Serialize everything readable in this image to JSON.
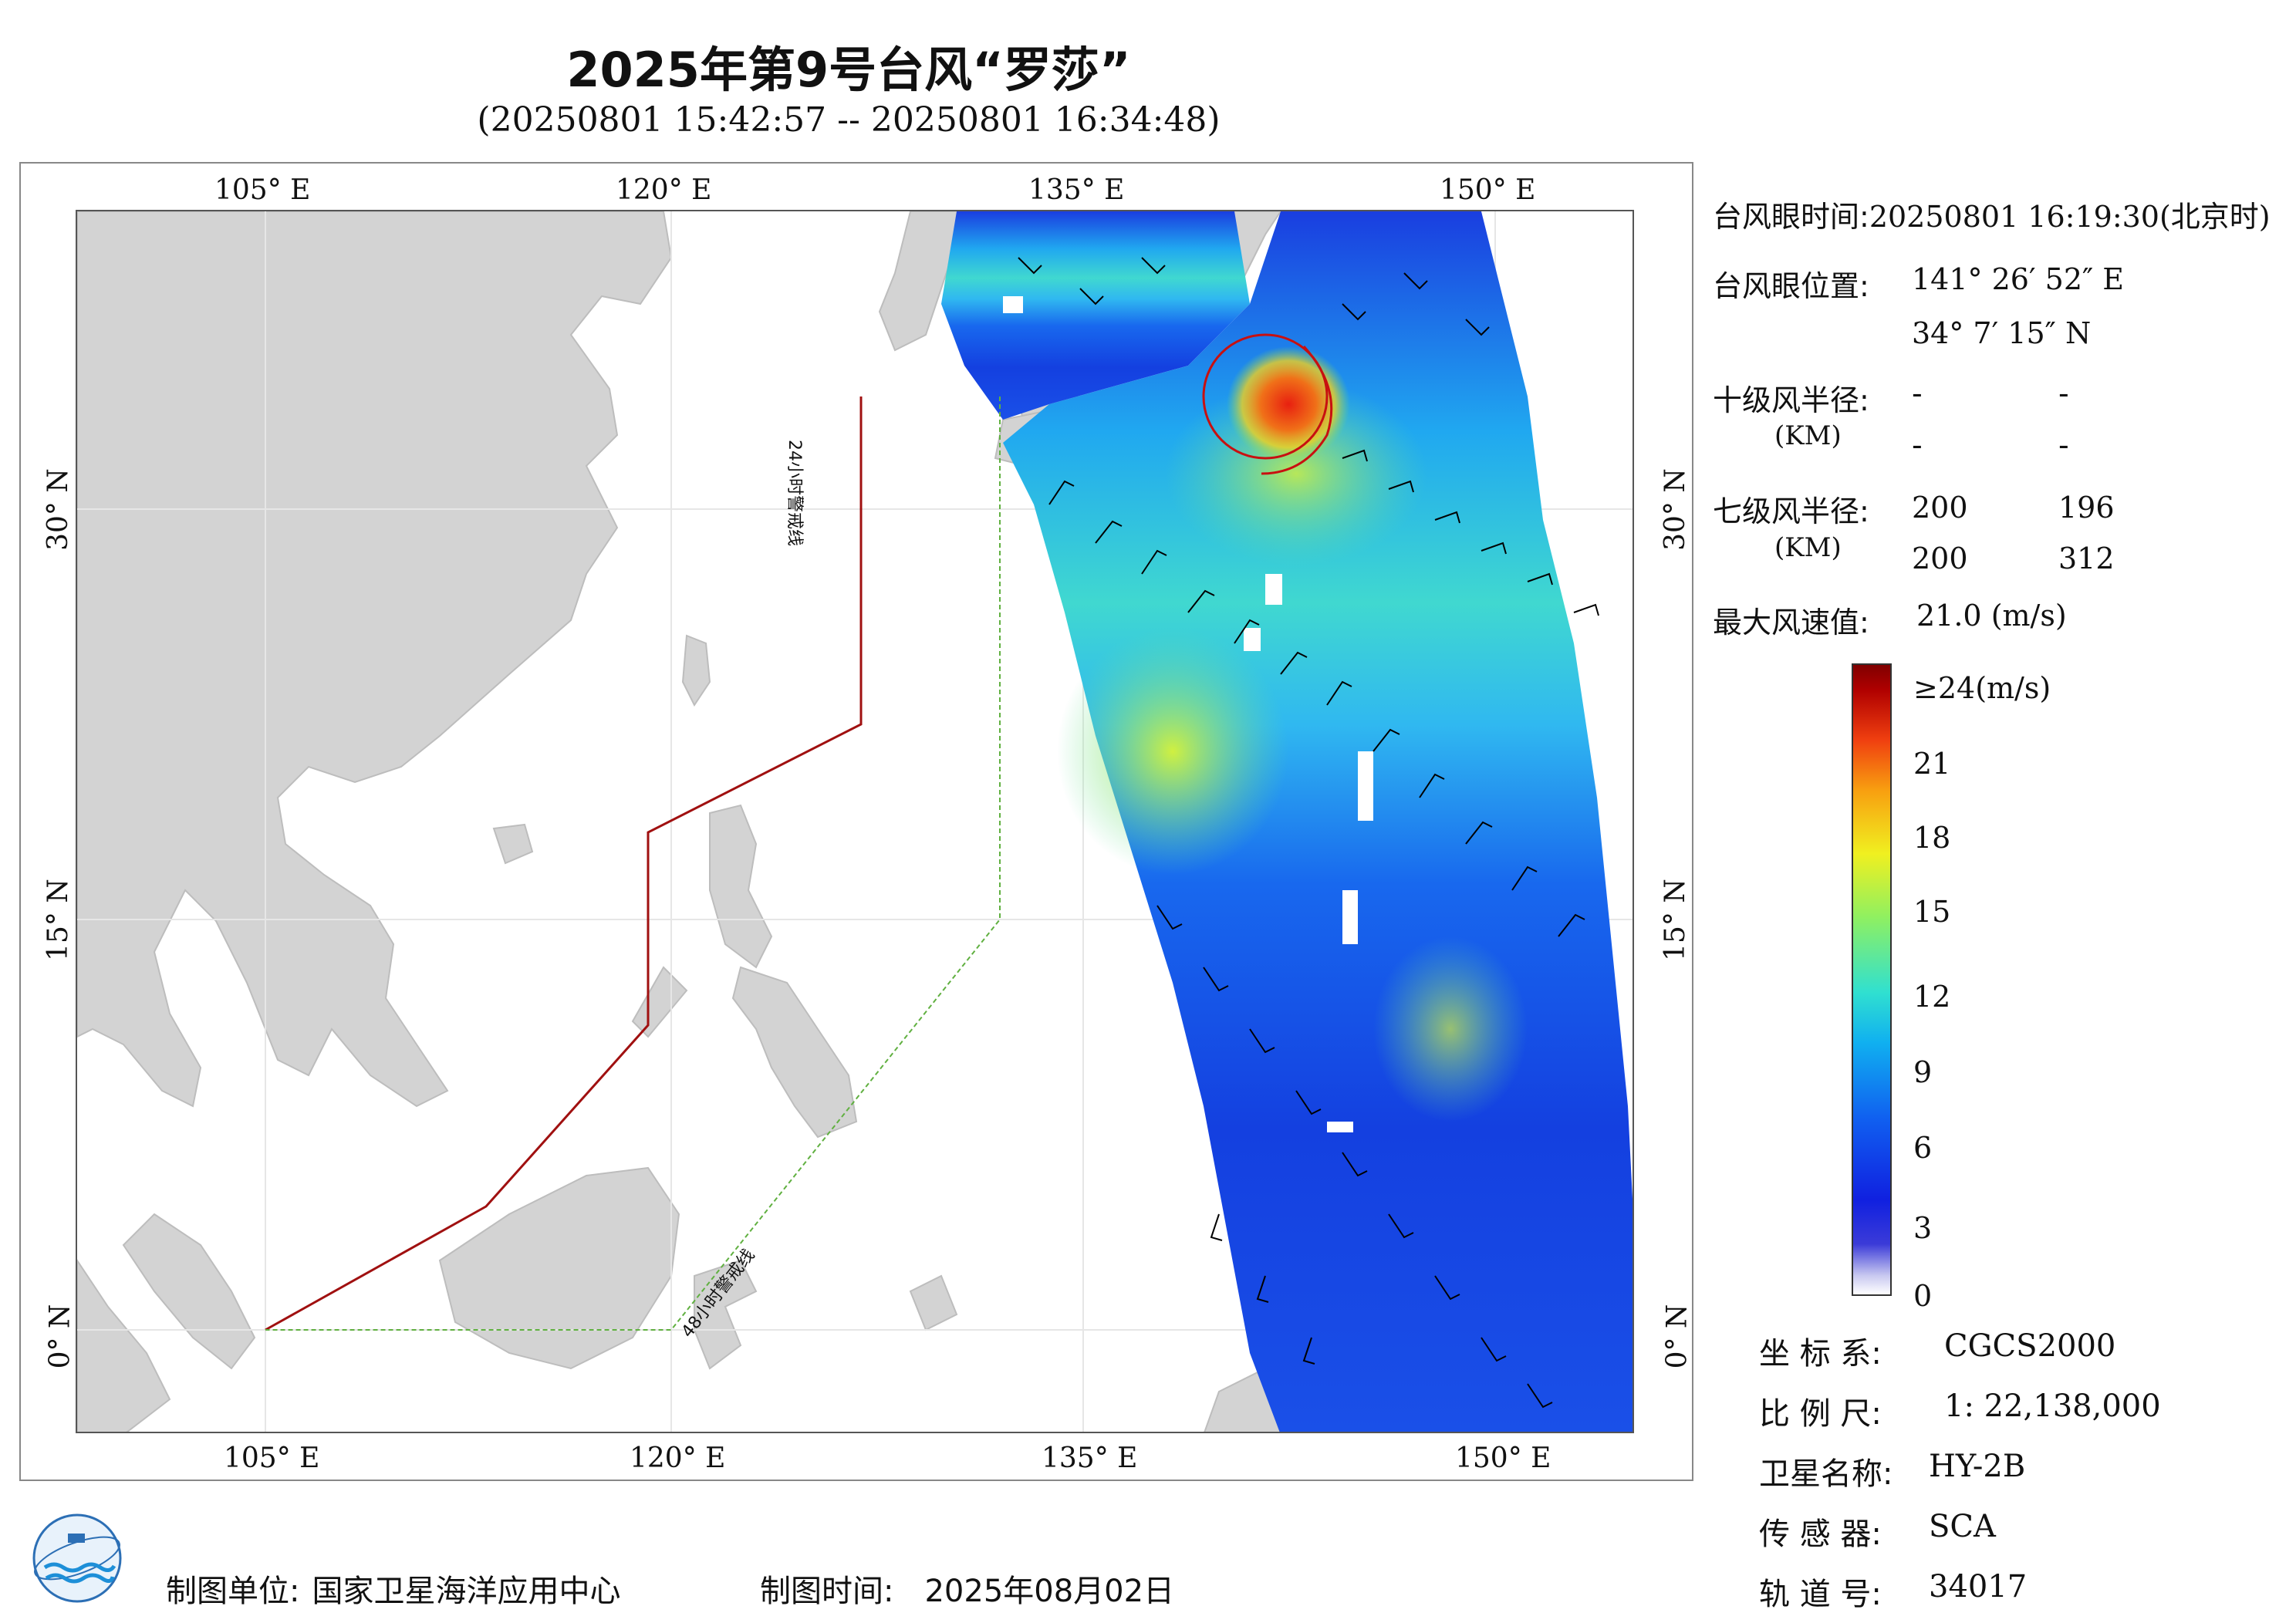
{
  "title": "2025年第9号台风“罗莎”",
  "subtitle": "(20250801 15:42:57 -- 20250801 16:34:48)",
  "map": {
    "lon_labels": [
      "105° E",
      "120° E",
      "135° E",
      "150° E"
    ],
    "lat_labels": [
      "30° N",
      "15° N",
      "0° N"
    ],
    "warn_24h": "24小时警戒线",
    "warn_48h": "48小时警戒线"
  },
  "info": {
    "eye_time_label": "台风眼时间:",
    "eye_time_value": "20250801 16:19:30(北京时)",
    "eye_pos_label": "台风眼位置:",
    "eye_lon": "141° 26′ 52″ E",
    "eye_lat": "34° 7′ 15″ N",
    "r10_label": "十级风半径:",
    "r10_unit": "(KM)",
    "r10_values": [
      "-",
      "-",
      "-",
      "-"
    ],
    "r7_label": "七级风半径:",
    "r7_unit": "(KM)",
    "r7_values": [
      "200",
      "196",
      "200",
      "312"
    ],
    "maxwind_label": "最大风速值:",
    "maxwind_value": "21.0  (m/s)"
  },
  "colorbar": {
    "ticks": [
      "≥24(m/s)",
      "21",
      "18",
      "15",
      "12",
      "9",
      "6",
      "3",
      "0"
    ]
  },
  "meta": {
    "crs_label": "坐 标 系:",
    "crs_value": "CGCS2000",
    "scale_label": "比 例 尺:",
    "scale_value": "1: 22,138,000",
    "sat_label": "卫星名称:",
    "sat_value": "HY-2B",
    "sensor_label": "传 感 器:",
    "sensor_value": "SCA",
    "orbit_label": "轨 道 号:",
    "orbit_value": "34017"
  },
  "footer": {
    "maker_label": "制图单位:",
    "maker_value": "国家卫星海洋应用中心",
    "date_label": "制图时间:",
    "date_value": "2025年08月02日"
  }
}
